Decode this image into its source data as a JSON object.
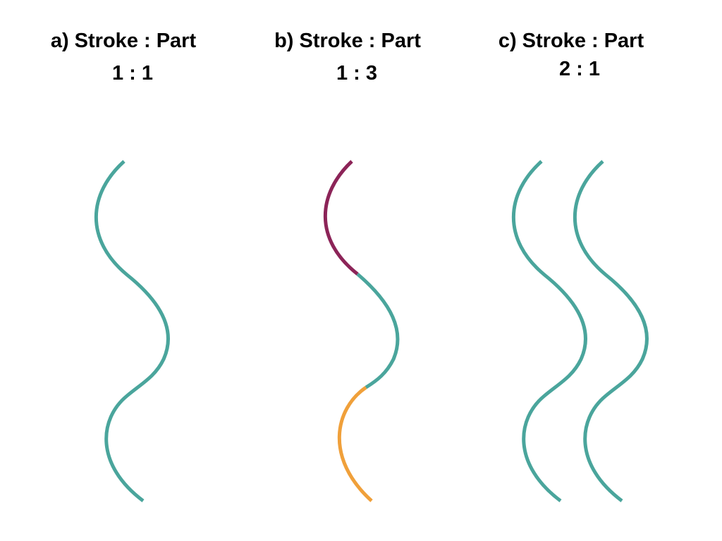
{
  "panels": [
    {
      "title": "a) Stroke : Part",
      "ratio": "1 : 1",
      "strokes": [
        {
          "parts": [
            "teal"
          ]
        }
      ]
    },
    {
      "title": "b) Stroke : Part",
      "ratio": "1 : 3",
      "strokes": [
        {
          "parts": [
            "purple",
            "teal",
            "orange"
          ]
        }
      ]
    },
    {
      "title": "c) Stroke : Part",
      "ratio": "2 : 1",
      "strokes": [
        {
          "parts": [
            "teal"
          ]
        },
        {
          "parts": [
            "teal"
          ]
        }
      ]
    }
  ],
  "colors": {
    "teal": "#4aa59c",
    "purple": "#8c2458",
    "orange": "#f0a03a",
    "text": "#000000",
    "background": "#ffffff"
  }
}
